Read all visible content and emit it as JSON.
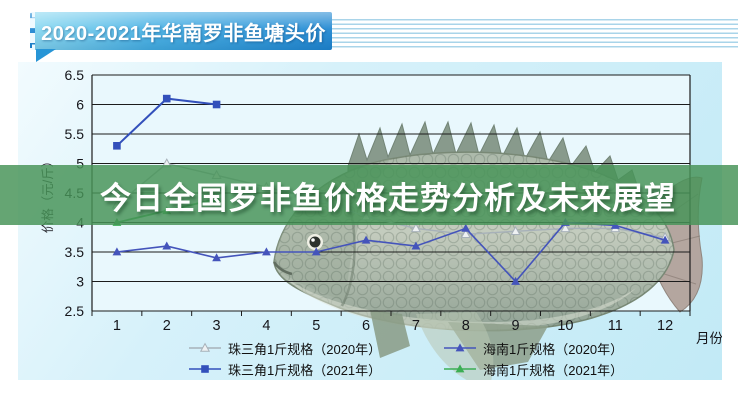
{
  "watermark": {
    "title": "今日全国罗非鱼价格走势分析及未来展望"
  },
  "chart_data": {
    "type": "line",
    "title": "2020-2021年华南罗非鱼塘头价",
    "xlabel": "月份",
    "ylabel": "价格（元/斤）",
    "x_categories": [
      1,
      2,
      3,
      4,
      5,
      6,
      7,
      8,
      9,
      10,
      11,
      12
    ],
    "ylim": [
      2.5,
      6.5
    ],
    "y_tick_step": 0.5,
    "grid": true,
    "legend_position": "bottom",
    "series": [
      {
        "name": "珠三角1斤规格（2020年）",
        "color": "#a7b1b9",
        "marker": "triangle-open",
        "line_width": 1.4,
        "values": [
          4.3,
          5.0,
          4.8,
          4.6,
          4.4,
          4.1,
          3.9,
          3.8,
          3.85,
          3.9,
          3.9,
          3.75
        ]
      },
      {
        "name": "海南1斤规格（2020年）",
        "color": "#4454bb",
        "marker": "triangle",
        "line_width": 1.6,
        "values": [
          3.5,
          3.6,
          3.4,
          3.5,
          3.5,
          3.7,
          3.6,
          3.9,
          3.0,
          4.0,
          3.95,
          3.7
        ]
      },
      {
        "name": "珠三角1斤规格（2021年）",
        "color": "#3350bb",
        "marker": "square",
        "line_width": 2,
        "values": [
          5.3,
          6.1,
          6.0,
          null,
          null,
          null,
          null,
          null,
          null,
          null,
          null,
          null
        ]
      },
      {
        "name": "海南1斤规格（2021年）",
        "color": "#3bae54",
        "marker": "triangle",
        "line_width": 1.8,
        "values": [
          4.0,
          4.2,
          4.4,
          null,
          null,
          null,
          null,
          null,
          null,
          null,
          null,
          null
        ]
      }
    ]
  }
}
